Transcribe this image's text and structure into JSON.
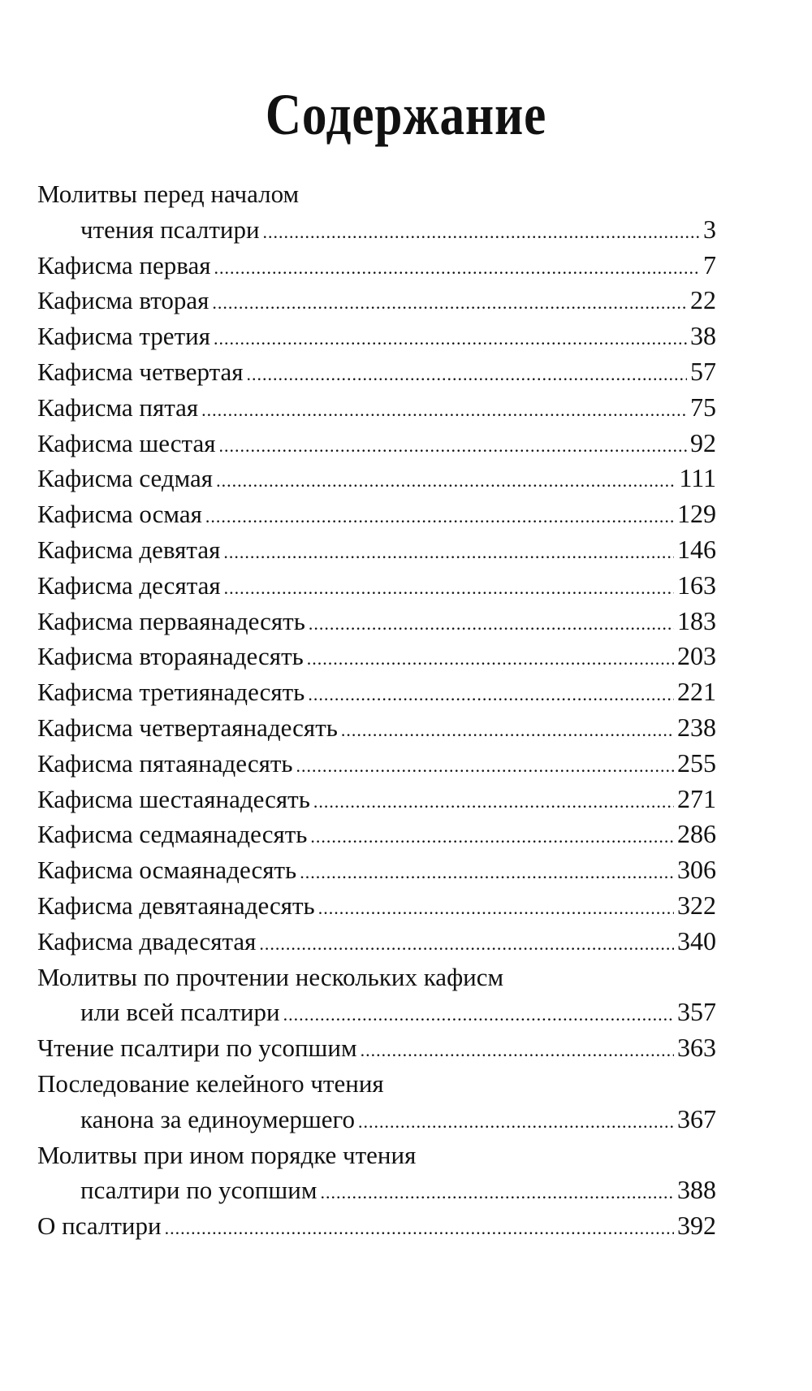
{
  "title": "Содержание",
  "entries": [
    {
      "lines": [
        "Молитвы перед началом",
        "чтения псалтири"
      ],
      "page": "3"
    },
    {
      "lines": [
        "Кафисма первая"
      ],
      "page": "7"
    },
    {
      "lines": [
        "Кафисма вторая"
      ],
      "page": "22"
    },
    {
      "lines": [
        "Кафисма третия"
      ],
      "page": "38"
    },
    {
      "lines": [
        "Кафисма четвертая"
      ],
      "page": "57"
    },
    {
      "lines": [
        "Кафисма пятая"
      ],
      "page": "75"
    },
    {
      "lines": [
        "Кафисма  шестая"
      ],
      "page": "92"
    },
    {
      "lines": [
        "Кафисма седмая"
      ],
      "page": "111"
    },
    {
      "lines": [
        "Кафисма осмая"
      ],
      "page": "129"
    },
    {
      "lines": [
        "Кафисма девятая"
      ],
      "page": "146"
    },
    {
      "lines": [
        "Кафисма десятая"
      ],
      "page": "163"
    },
    {
      "lines": [
        "Кафисма перваянадесять"
      ],
      "page": "183"
    },
    {
      "lines": [
        "Кафисма втораянадесять"
      ],
      "page": "203"
    },
    {
      "lines": [
        "Кафисма третиянадесять"
      ],
      "page": "221"
    },
    {
      "lines": [
        "Кафисма четвертаянадесять"
      ],
      "page": "238"
    },
    {
      "lines": [
        "Кафисма  пятаянадесять"
      ],
      "page": "255"
    },
    {
      "lines": [
        "Кафисма  шестаянадесять"
      ],
      "page": "271"
    },
    {
      "lines": [
        "Кафисма седмаянадесять"
      ],
      "page": "286"
    },
    {
      "lines": [
        "Кафисма осмаянадесять"
      ],
      "page": "306"
    },
    {
      "lines": [
        "Кафисма девятаянадесять"
      ],
      "page": "322"
    },
    {
      "lines": [
        "Кафисма двадесятая"
      ],
      "page": "340"
    },
    {
      "lines": [
        "Молитвы по прочтении нескольких кафисм",
        "или всей псалтири"
      ],
      "page": "357"
    },
    {
      "lines": [
        "Чтение псалтири по усопшим"
      ],
      "page": "363"
    },
    {
      "lines": [
        "Последование келейного чтения",
        "канона за единоумершего"
      ],
      "page": "367"
    },
    {
      "lines": [
        "Молитвы при ином порядке чтения",
        "псалтири по усопшим"
      ],
      "page": "388"
    },
    {
      "lines": [
        "О псалтири"
      ],
      "page": "392"
    }
  ]
}
